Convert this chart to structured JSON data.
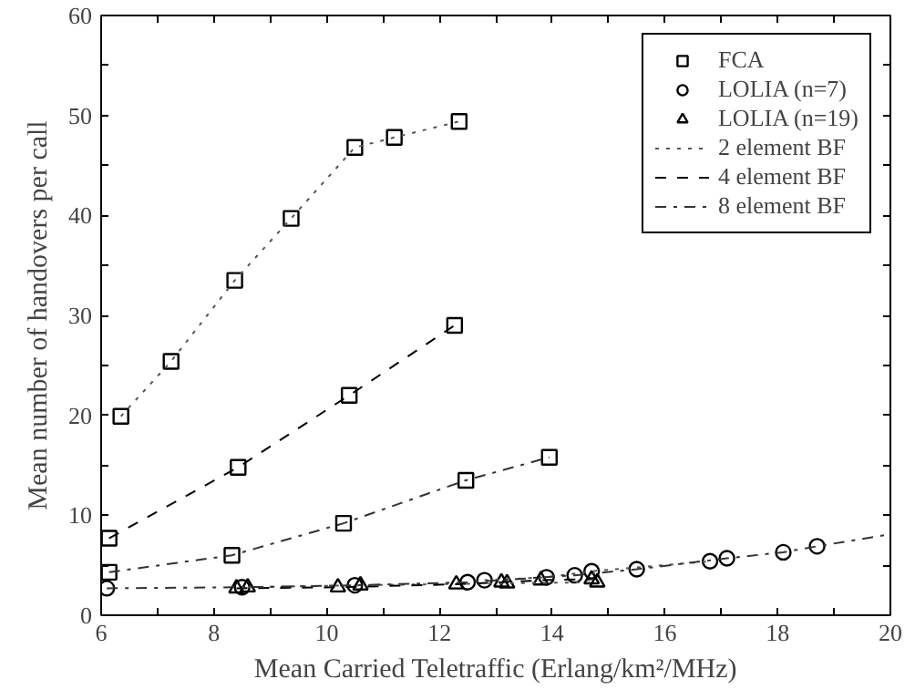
{
  "chart_data": {
    "type": "line",
    "xlabel": "Mean Carried Teletraffic (Erlang/km²/MHz)",
    "ylabel": "Mean number of handovers per call",
    "xlim": [
      6,
      20
    ],
    "ylim": [
      0,
      60
    ],
    "xticks": [
      6,
      {
        "value": 7,
        "label": null
      },
      8,
      {
        "value": 9,
        "label": null
      },
      10,
      {
        "value": 11,
        "label": null
      },
      12,
      {
        "value": 13,
        "label": null
      },
      14,
      {
        "value": 15,
        "label": null
      },
      16,
      {
        "value": 17,
        "label": null
      },
      18,
      {
        "value": 19,
        "label": null
      },
      20
    ],
    "yticks": [
      0,
      {
        "value": 5,
        "label": null
      },
      10,
      {
        "value": 15,
        "label": null
      },
      20,
      {
        "value": 25,
        "label": null
      },
      30,
      {
        "value": 35,
        "label": null
      },
      40,
      {
        "value": 45,
        "label": null
      },
      50,
      {
        "value": 55,
        "label": null
      },
      60
    ],
    "grid": false,
    "legend": "top right",
    "series": [
      {
        "name": "FCA",
        "type": "scatter",
        "marker": "square",
        "color": "#000000",
        "x": [
          6.35,
          7.24,
          8.37,
          9.37,
          10.5,
          11.2,
          12.35,
          6.14,
          8.43,
          10.4,
          12.27,
          6.14,
          8.32,
          10.3,
          12.47,
          13.95
        ],
        "values": [
          19.9,
          25.4,
          33.5,
          39.7,
          46.8,
          47.8,
          49.4,
          7.7,
          14.8,
          22.0,
          29.0,
          4.3,
          6.0,
          9.2,
          13.5,
          15.8
        ]
      },
      {
        "name": "LOLIA (n=7)",
        "type": "scatter",
        "marker": "circle",
        "color": "#000000",
        "x": [
          6.1,
          8.5,
          10.5,
          12.5,
          14.4,
          15.5,
          17.1,
          18.1,
          18.7,
          12.8,
          13.9,
          14.7,
          16.8
        ],
        "values": [
          2.7,
          2.8,
          3.0,
          3.3,
          4.0,
          4.6,
          5.7,
          6.3,
          6.9,
          3.5,
          3.8,
          4.4,
          5.4
        ]
      },
      {
        "name": "LOLIA (n=19)",
        "type": "scatter",
        "marker": "triangle",
        "color": "#000000",
        "x": [
          8.4,
          10.2,
          12.3,
          13.1,
          13.8,
          14.7,
          8.6,
          10.6,
          13.2,
          14.8
        ],
        "values": [
          2.7,
          2.8,
          3.1,
          3.3,
          3.5,
          3.6,
          2.8,
          3.0,
          3.2,
          3.3
        ]
      },
      {
        "name": "2 element BF",
        "line_style": "dotted",
        "color": "#555555",
        "x": [
          6.35,
          7.24,
          8.37,
          9.37,
          10.5,
          11.2,
          12.35
        ],
        "values": [
          19.9,
          25.4,
          33.5,
          39.7,
          46.8,
          47.8,
          49.4
        ]
      },
      {
        "line_style": "dotted",
        "color": "#555555",
        "x": [
          12.8,
          13.9,
          14.7,
          16.8
        ],
        "values": [
          3.5,
          3.8,
          4.4,
          5.4
        ]
      },
      {
        "line_style": "dotted",
        "color": "#555555",
        "x": [
          8.6,
          10.6,
          13.2,
          14.8
        ],
        "values": [
          2.8,
          3.0,
          3.2,
          3.3
        ]
      },
      {
        "name": "4 element BF",
        "line_style": "dashed",
        "color": "#000000",
        "x": [
          6.14,
          8.43,
          10.4,
          12.27
        ],
        "values": [
          7.7,
          14.8,
          22.0,
          29.0
        ]
      },
      {
        "line_style": "dashed",
        "color": "#000000",
        "x": [
          8.4,
          10.2,
          12.3,
          13.1,
          13.8,
          14.7
        ],
        "values": [
          2.7,
          2.8,
          3.1,
          3.3,
          3.5,
          3.6
        ]
      },
      {
        "name": "8 element BF",
        "line_style": "dashdot",
        "color": "#333333",
        "x": [
          6.14,
          8.32,
          10.3,
          12.47,
          13.95
        ],
        "values": [
          4.3,
          6.0,
          9.2,
          13.5,
          15.8
        ]
      },
      {
        "line_style": "dashdot",
        "color": "#333333",
        "x": [
          6.1,
          8.5,
          10.5,
          12.5,
          14.4,
          15.5,
          17.1,
          18.1,
          18.7,
          20
        ],
        "values": [
          2.7,
          2.8,
          3.0,
          3.3,
          4.0,
          4.6,
          5.7,
          6.3,
          6.9,
          8.1
        ]
      }
    ]
  }
}
